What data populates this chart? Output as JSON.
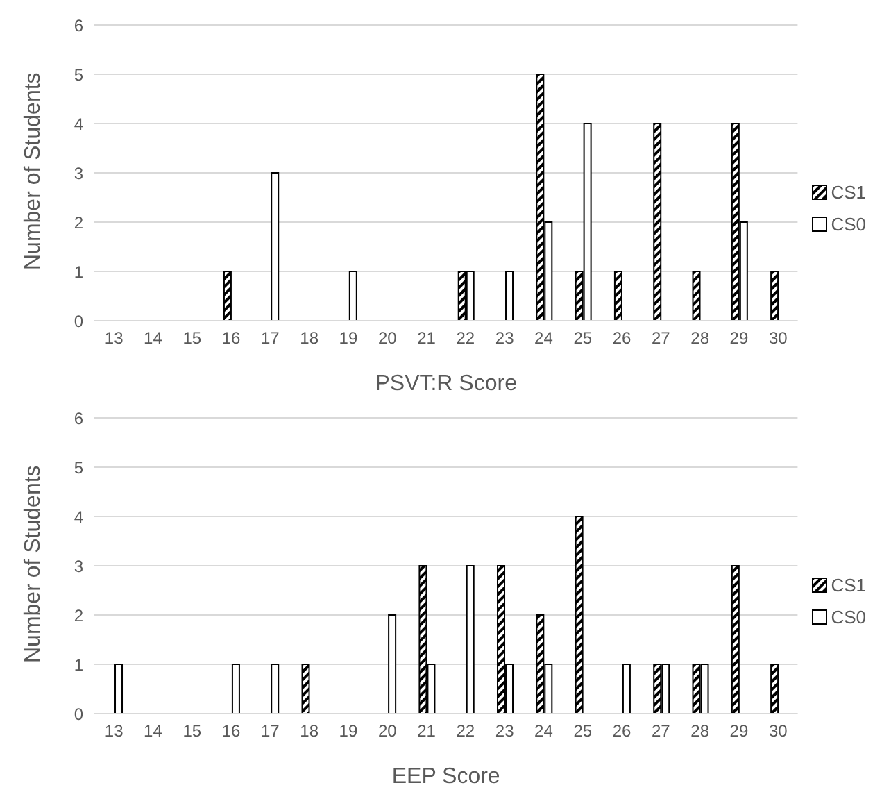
{
  "chart_data": [
    {
      "type": "bar",
      "xlabel": "PSVT:R Score",
      "ylabel": "Number of Students",
      "categories": [
        "13",
        "14",
        "15",
        "16",
        "17",
        "18",
        "19",
        "20",
        "21",
        "22",
        "23",
        "24",
        "25",
        "26",
        "27",
        "28",
        "29",
        "30"
      ],
      "series": [
        {
          "name": "CS1",
          "color": "#000000",
          "values": [
            0,
            0,
            0,
            1,
            0,
            0,
            0,
            0,
            0,
            1,
            0,
            5,
            1,
            1,
            4,
            1,
            4,
            1
          ]
        },
        {
          "name": "CS0",
          "color": "#ffffff",
          "values": [
            0,
            0,
            0,
            0,
            3,
            0,
            1,
            0,
            0,
            1,
            1,
            2,
            4,
            0,
            0,
            0,
            2,
            0
          ]
        }
      ],
      "ylim": [
        0,
        6
      ],
      "yticks": [
        0,
        1,
        2,
        3,
        4,
        5,
        6
      ],
      "grid": "y",
      "legend": "right"
    },
    {
      "type": "bar",
      "xlabel": "EEP Score",
      "ylabel": "Number of Students",
      "categories": [
        "13",
        "14",
        "15",
        "16",
        "17",
        "18",
        "19",
        "20",
        "21",
        "22",
        "23",
        "24",
        "25",
        "26",
        "27",
        "28",
        "29",
        "30"
      ],
      "series": [
        {
          "name": "CS1",
          "color": "#000000",
          "values": [
            0,
            0,
            0,
            0,
            0,
            1,
            0,
            0,
            3,
            0,
            3,
            2,
            4,
            0,
            1,
            1,
            3,
            1
          ]
        },
        {
          "name": "CS0",
          "color": "#ffffff",
          "values": [
            1,
            0,
            0,
            1,
            1,
            0,
            0,
            2,
            1,
            3,
            1,
            1,
            0,
            1,
            1,
            1,
            0,
            0
          ]
        }
      ],
      "ylim": [
        0,
        6
      ],
      "yticks": [
        0,
        1,
        2,
        3,
        4,
        5,
        6
      ],
      "grid": "y",
      "legend": "right"
    }
  ]
}
